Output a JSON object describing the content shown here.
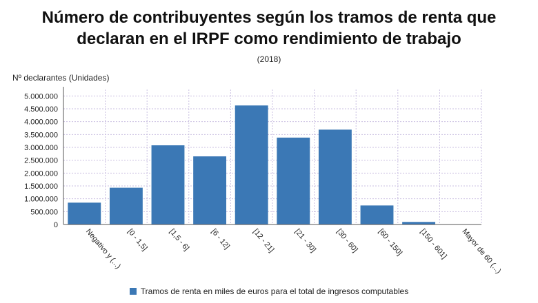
{
  "title_line1": "Número de contribuyentes según los tramos de renta que",
  "title_line2": "declaran en el IRPF como rendimiento de trabajo",
  "subtitle": "(2018)",
  "ylabel": "Nº declarantes (Unidades)",
  "legend_label": "Tramos de renta en miles de euros para el total de ingresos computables",
  "colors": {
    "bar": "#3b78b5",
    "grid": "#c9bfe0",
    "axis": "#555555"
  },
  "chart_data": {
    "type": "bar",
    "categories": [
      "Negativo y (...)",
      "[0 - 1,5]",
      "[1,5 - 6]",
      "[6 - 12]",
      "[12 - 21]",
      "[21 - 30]",
      "[30 - 60]",
      "[60 - 150]",
      "[150 - 601]",
      "Mayor de 60 (...)"
    ],
    "series": [
      {
        "name": "Tramos de renta en miles de euros para el total de ingresos computables",
        "values": [
          850000,
          1430000,
          3080000,
          2650000,
          4630000,
          3380000,
          3690000,
          740000,
          100000,
          10000
        ]
      }
    ],
    "yticks": [
      "0",
      "500.000",
      "1.000.000",
      "1.500.000",
      "2.000.000",
      "2.500.000",
      "3.000.000",
      "3.500.000",
      "4.000.000",
      "4.500.000",
      "5.000.000"
    ],
    "ylim": [
      0,
      5250000
    ],
    "grid": true,
    "legend_position": "bottom"
  }
}
